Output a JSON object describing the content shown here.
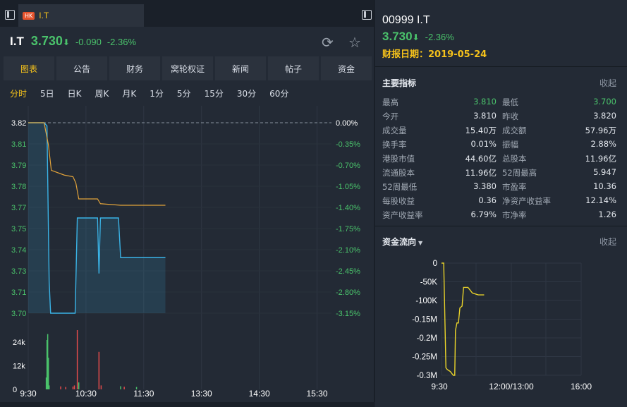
{
  "tab": {
    "market": "HK",
    "name": "I.T"
  },
  "header": {
    "symbol": "I.T",
    "price": "3.730",
    "arrow": "⬇",
    "change": "-0.090",
    "change_pct": "-2.36%"
  },
  "menu": [
    "图表",
    "公告",
    "财务",
    "窝轮权证",
    "新闻",
    "帖子",
    "资金"
  ],
  "periods": [
    "分时",
    "5日",
    "日K",
    "周K",
    "月K",
    "1分",
    "5分",
    "15分",
    "30分",
    "60分"
  ],
  "right_header": {
    "code_name": "00999 I.T",
    "price": "3.730",
    "arrow": "⬇",
    "change_pct": "-2.36%",
    "report_label": "财报日期：",
    "report_date": "2019-05-24"
  },
  "indicators": {
    "title": "主要指标",
    "collapse": "收起",
    "left": [
      {
        "k": "最高",
        "v": "3.810",
        "green": true
      },
      {
        "k": "今开",
        "v": "3.810",
        "green": false
      },
      {
        "k": "成交量",
        "v": "15.40万",
        "green": false
      },
      {
        "k": "换手率",
        "v": "0.01%",
        "green": false
      },
      {
        "k": "港股市值",
        "v": "44.60亿",
        "green": false
      },
      {
        "k": "流通股本",
        "v": "11.96亿",
        "green": false
      },
      {
        "k": "52周最低",
        "v": "3.380",
        "green": false
      },
      {
        "k": "每股收益",
        "v": "0.36",
        "green": false
      },
      {
        "k": "资产收益率",
        "v": "6.79%",
        "green": false
      }
    ],
    "right": [
      {
        "k": "最低",
        "v": "3.700",
        "green": true
      },
      {
        "k": "昨收",
        "v": "3.820",
        "green": false
      },
      {
        "k": "成交额",
        "v": "57.96万",
        "green": false
      },
      {
        "k": "振幅",
        "v": "2.88%",
        "green": false
      },
      {
        "k": "总股本",
        "v": "11.96亿",
        "green": false
      },
      {
        "k": "52周最高",
        "v": "5.947",
        "green": false
      },
      {
        "k": "市盈率",
        "v": "10.36",
        "green": false
      },
      {
        "k": "净资产收益率",
        "v": "12.14%",
        "green": false
      },
      {
        "k": "市净率",
        "v": "1.26",
        "green": false
      }
    ]
  },
  "flow": {
    "title": "资金流向",
    "collapse": "收起"
  },
  "colors": {
    "up": "#e34b4b",
    "down": "#4ac26b",
    "accent": "#f5c21b",
    "price_line": "#3ab3e6",
    "avg_line": "#e2a33a"
  },
  "chart_data": [
    {
      "type": "line",
      "name": "intraday",
      "y_ticks_left": [
        "3.82",
        "3.81",
        "3.79",
        "3.78",
        "3.77",
        "3.75",
        "3.74",
        "3.73",
        "3.71",
        "3.70"
      ],
      "y_ticks_right": [
        "0.00%",
        "-0.35%",
        "-0.70%",
        "-1.05%",
        "-1.40%",
        "-1.75%",
        "-2.10%",
        "-2.45%",
        "-2.80%",
        "-3.15%"
      ],
      "x_ticks": [
        "9:30",
        "10:30",
        "11:30",
        "13:30",
        "14:30",
        "15:30"
      ],
      "ylim": [
        3.7,
        3.82
      ],
      "prev_close": 3.82,
      "price": [
        [
          0,
          3.82
        ],
        [
          22,
          3.82
        ],
        [
          26,
          3.818
        ],
        [
          29,
          3.72
        ],
        [
          31,
          3.7
        ],
        [
          65,
          3.7
        ],
        [
          68,
          3.76
        ],
        [
          72,
          3.76
        ],
        [
          96,
          3.76
        ],
        [
          98,
          3.725
        ],
        [
          100,
          3.76
        ],
        [
          125,
          3.76
        ],
        [
          128,
          3.735
        ],
        [
          190,
          3.735
        ]
      ],
      "avg": [
        [
          0,
          3.82
        ],
        [
          22,
          3.82
        ],
        [
          28,
          3.806
        ],
        [
          32,
          3.79
        ],
        [
          50,
          3.787
        ],
        [
          62,
          3.786
        ],
        [
          66,
          3.782
        ],
        [
          70,
          3.772
        ],
        [
          96,
          3.772
        ],
        [
          100,
          3.769
        ],
        [
          128,
          3.768
        ],
        [
          190,
          3.768
        ]
      ],
      "volume_ticks": [
        "24k",
        "12k",
        "0"
      ],
      "volume_ylim": [
        0,
        30000
      ],
      "volume": [
        [
          25,
          6000,
          "down"
        ],
        [
          26,
          25000,
          "down"
        ],
        [
          27,
          28000,
          "down"
        ],
        [
          28,
          16000,
          "down"
        ],
        [
          29,
          2000,
          "down"
        ],
        [
          45,
          1500,
          "up"
        ],
        [
          52,
          1200,
          "up"
        ],
        [
          62,
          1400,
          "up"
        ],
        [
          64,
          2000,
          "up"
        ],
        [
          68,
          30000,
          "up"
        ],
        [
          70,
          3500,
          "down"
        ],
        [
          98,
          19000,
          "up"
        ],
        [
          101,
          2000,
          "up"
        ],
        [
          128,
          1600,
          "down"
        ],
        [
          133,
          1300,
          "up"
        ],
        [
          150,
          1200,
          "down"
        ]
      ]
    },
    {
      "type": "line",
      "name": "capital-flow",
      "y_ticks": [
        "0",
        "-50K",
        "-100K",
        "-0.15M",
        "-0.2M",
        "-0.25M",
        "-0.3M"
      ],
      "x_ticks": [
        "9:30",
        "12:00/13:00",
        "16:00"
      ],
      "ylim": [
        -300000,
        0
      ],
      "values": [
        [
          0,
          0
        ],
        [
          3,
          0
        ],
        [
          6,
          -280000
        ],
        [
          8,
          -285000
        ],
        [
          12,
          -290000
        ],
        [
          16,
          -300000
        ],
        [
          18,
          -300000
        ],
        [
          19,
          -180000
        ],
        [
          21,
          -160000
        ],
        [
          23,
          -160000
        ],
        [
          25,
          -120000
        ],
        [
          28,
          -115000
        ],
        [
          30,
          -65000
        ],
        [
          36,
          -65000
        ],
        [
          38,
          -70000
        ],
        [
          42,
          -80000
        ],
        [
          50,
          -85000
        ],
        [
          58,
          -85000
        ]
      ]
    }
  ]
}
